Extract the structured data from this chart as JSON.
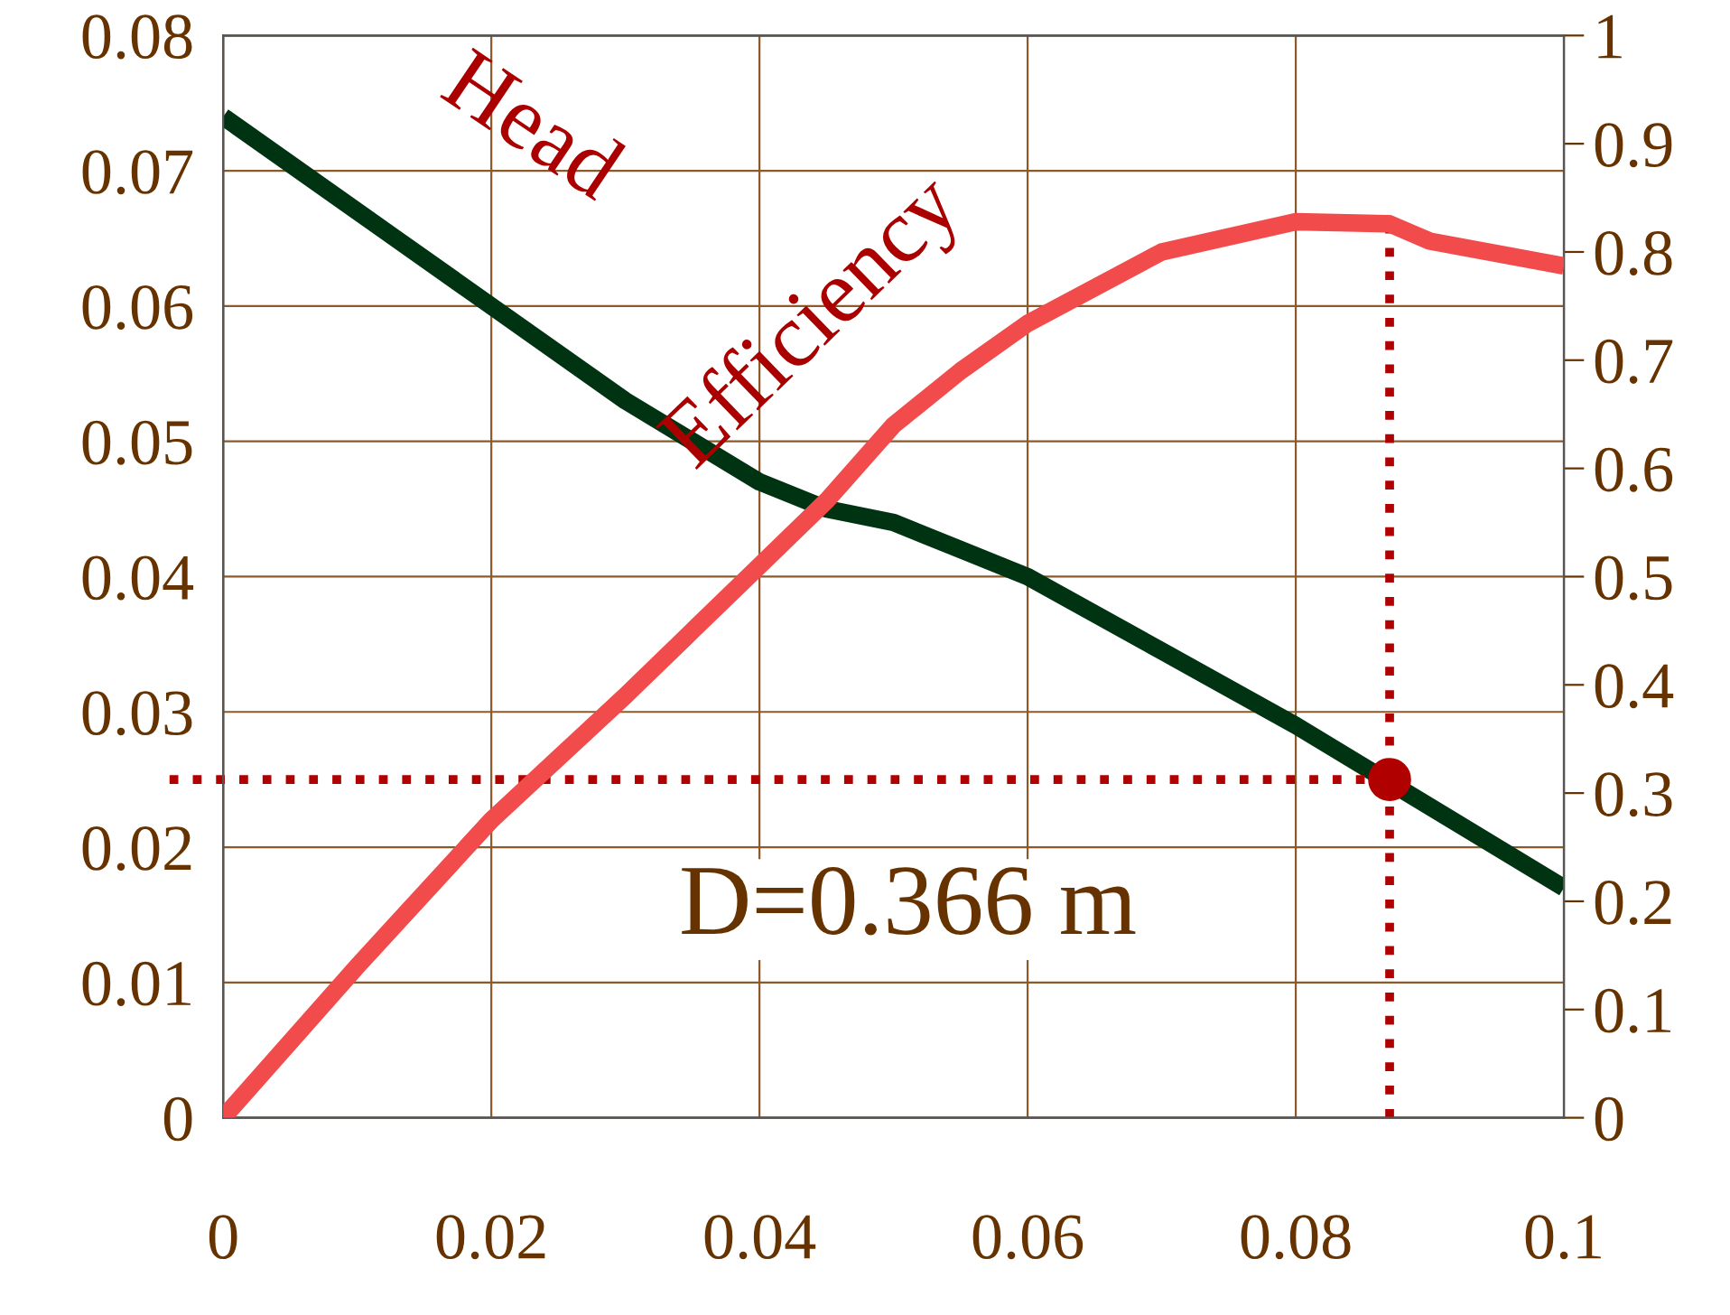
{
  "chart_data": {
    "type": "line",
    "x": [
      0,
      0.01,
      0.02,
      0.03,
      0.035,
      0.04,
      0.045,
      0.05,
      0.055,
      0.06,
      0.07,
      0.08,
      0.087,
      0.09,
      0.1
    ],
    "series": [
      {
        "name": "Head",
        "color": "#003311",
        "x": [
          0,
          0.01,
          0.02,
          0.03,
          0.035,
          0.04,
          0.045,
          0.05,
          0.055,
          0.06,
          0.07,
          0.08,
          0.09,
          0.1
        ],
        "values": [
          0.074,
          0.067,
          0.06,
          0.053,
          0.05,
          0.047,
          0.045,
          0.044,
          0.042,
          0.04,
          0.0345,
          0.029,
          0.023,
          0.017
        ]
      },
      {
        "name": "Efficiency",
        "color": "#f24b4b",
        "axis": "y2",
        "values": [
          0,
          0.14,
          0.275,
          0.39,
          0.45,
          0.51,
          0.57,
          0.64,
          0.69,
          0.734,
          0.8,
          0.828,
          0.826,
          0.81,
          0.787
        ]
      },
      {
        "type": "scatter",
        "marker": "circle",
        "color": "#b00000",
        "x": [
          0.087
        ],
        "values": [
          0.025
        ]
      }
    ],
    "xlim": [
      0,
      0.1
    ],
    "xticks": [
      0,
      0.02,
      0.04,
      0.06,
      0.08,
      0.1
    ],
    "ylim": [
      0,
      0.08
    ],
    "yticks": [
      0,
      0.01,
      0.02,
      0.03,
      0.04,
      0.05,
      0.06,
      0.07,
      0.08
    ],
    "y2lim": [
      0,
      1
    ],
    "y2ticks": [
      0,
      0.1,
      0.2,
      0.3,
      0.4,
      0.5,
      0.6,
      0.7,
      0.8,
      0.9,
      1
    ],
    "grid": true,
    "legend": false,
    "marker": "none",
    "line_style": "solid",
    "ref_lines": [
      {
        "axis": "y",
        "value": 0.025,
        "color": "#b00000",
        "line_style": "dotted"
      },
      {
        "axis": "x",
        "value": 0.087,
        "color": "#b00000",
        "line_style": "dotted"
      }
    ],
    "annotations": [
      "D=0.366 m"
    ]
  }
}
